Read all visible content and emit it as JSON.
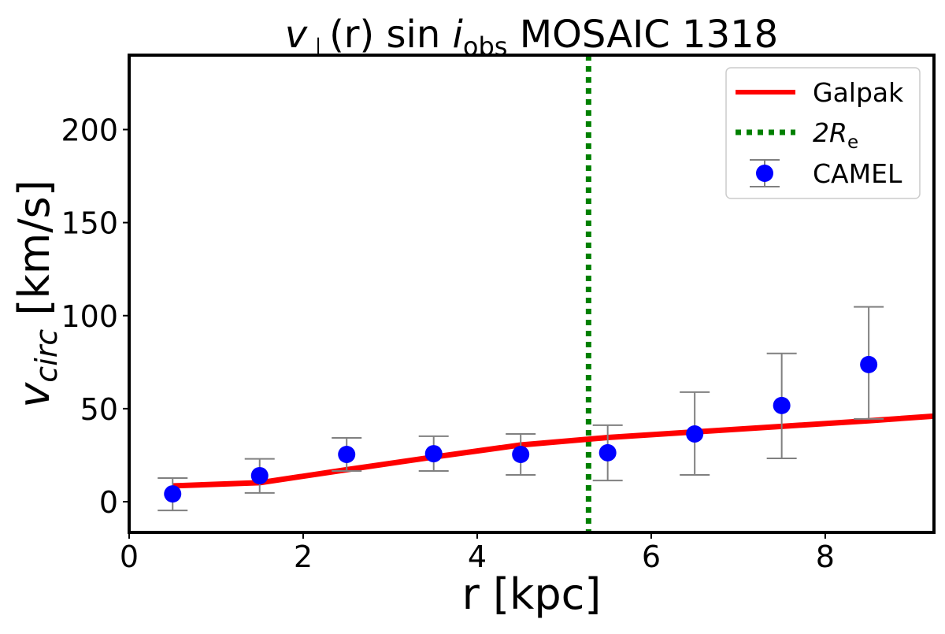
{
  "chart_data": {
    "type": "line",
    "title": {
      "v": "v",
      "sub1": "⊥",
      "r": "(r)",
      "sin": " sin ",
      "i": "i",
      "sub2": "obs",
      "rest": " MOSAIC 1318"
    },
    "xlabel": "r [kpc]",
    "ylabel": {
      "main": "v",
      "sub": "circ",
      "unit": " [km/s]"
    },
    "xlim": [
      0,
      9.25
    ],
    "ylim": [
      -16.5,
      240
    ],
    "xticks": [
      0,
      2,
      4,
      6,
      8
    ],
    "yticks": [
      0,
      50,
      100,
      150,
      200
    ],
    "grid": false,
    "legend_position": "top-right",
    "series": [
      {
        "name": "Galpak",
        "kind": "line",
        "color": "#ff0000",
        "x": [
          0.5,
          1.5,
          2.5,
          3.5,
          4.5,
          5.5,
          6.5,
          7.5,
          8.5,
          9.25
        ],
        "y": [
          8.5,
          10.2,
          17.2,
          24.0,
          30.5,
          34.5,
          37.5,
          40.5,
          43.5,
          46.0
        ]
      },
      {
        "name": "2R",
        "name_sub": "e",
        "kind": "vline",
        "color": "#008000",
        "x": 5.28
      },
      {
        "name": "CAMEL",
        "kind": "errorbar",
        "color": "#0000ff",
        "error_color": "#808080",
        "x": [
          0.5,
          1.5,
          2.5,
          3.5,
          4.5,
          5.5,
          6.5,
          7.5,
          8.5
        ],
        "y": [
          4.2,
          14.0,
          25.4,
          25.8,
          25.4,
          26.3,
          36.4,
          51.7,
          73.7
        ],
        "y_upper": [
          12.7,
          23.0,
          34.3,
          35.2,
          36.4,
          41.1,
          58.9,
          79.7,
          104.7
        ],
        "y_lower": [
          -4.7,
          4.7,
          16.5,
          16.5,
          14.4,
          11.4,
          14.4,
          23.3,
          44.5
        ]
      }
    ]
  }
}
